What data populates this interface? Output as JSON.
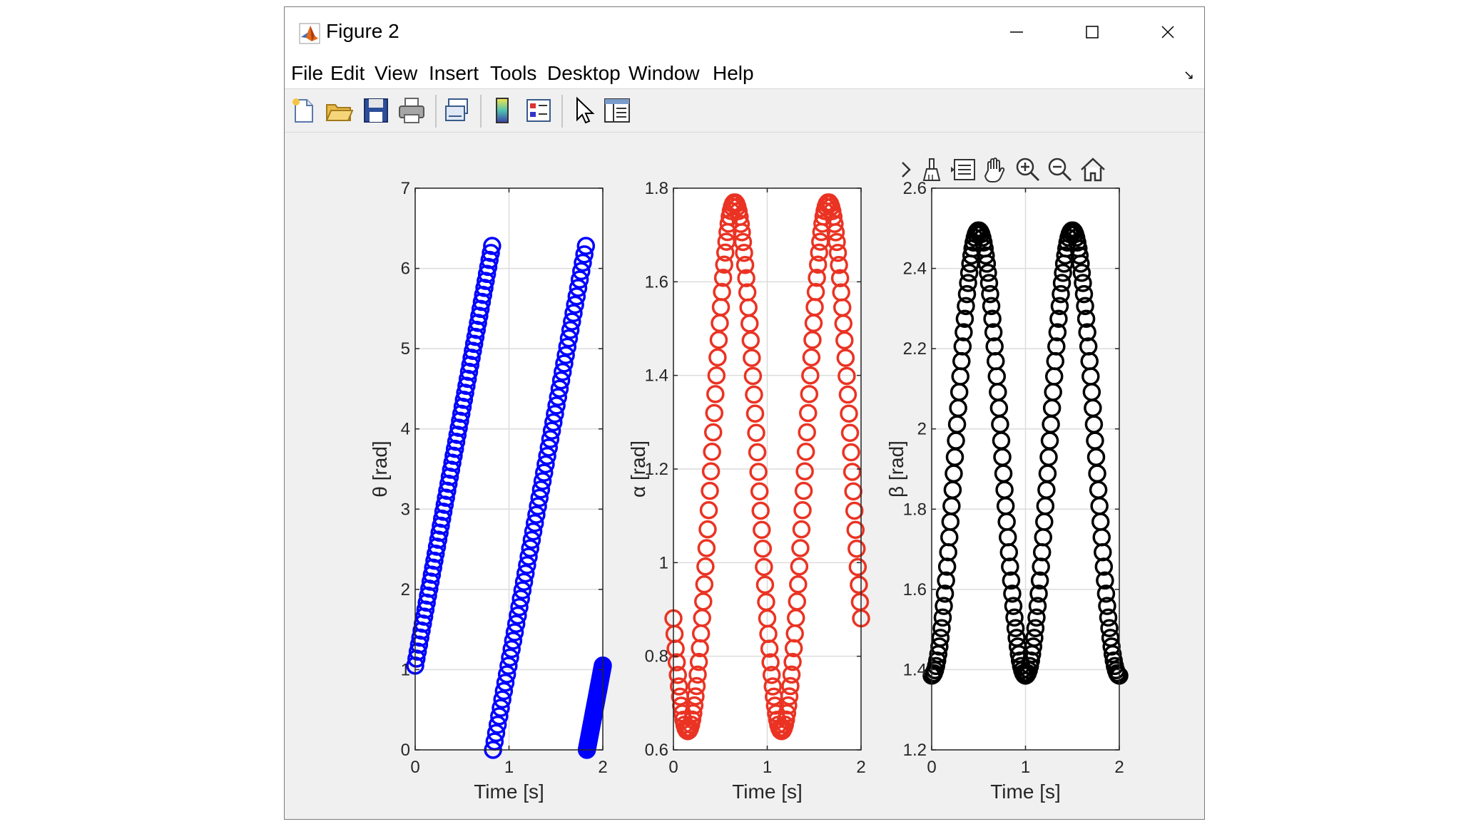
{
  "window": {
    "title": "Figure 2",
    "menu": [
      "File",
      "Edit",
      "View",
      "Insert",
      "Tools",
      "Desktop",
      "Window",
      "Help"
    ]
  },
  "toolbar": {
    "buttons": [
      {
        "name": "new-figure-icon"
      },
      {
        "name": "open-file-icon"
      },
      {
        "name": "save-icon"
      },
      {
        "name": "print-icon"
      },
      {
        "name": "link-plot-icon"
      },
      {
        "name": "insert-colorbar-icon"
      },
      {
        "name": "insert-legend-icon"
      },
      {
        "name": "edit-plot-cursor-icon"
      },
      {
        "name": "property-inspector-icon"
      }
    ]
  },
  "axes_toolbar": [
    "expand-chevron-icon",
    "brush-icon",
    "data-tips-icon",
    "pan-hand-icon",
    "zoom-in-icon",
    "zoom-out-icon",
    "home-icon"
  ],
  "colors": {
    "theta": "#0000ff",
    "alpha": "#ea3323",
    "beta": "#000000",
    "grid": "#dcdcdc"
  },
  "chart_data": [
    {
      "type": "scatter",
      "title": "",
      "xlabel": "Time [s]",
      "ylabel": "θ [rad]",
      "xlim": [
        0,
        2
      ],
      "ylim": [
        0,
        7
      ],
      "xticks": [
        "0",
        "1",
        "2"
      ],
      "yticks": [
        "0",
        "1",
        "2",
        "3",
        "4",
        "5",
        "6",
        "7"
      ],
      "grid": true,
      "color": "#0000ff",
      "segments": [
        {
          "x": [
            0.0,
            0.82
          ],
          "y": [
            1.05,
            6.28
          ]
        },
        {
          "x": [
            0.83,
            1.82
          ],
          "y": [
            0.0,
            6.28
          ]
        },
        {
          "x": [
            1.83,
            2.0
          ],
          "y": [
            0.0,
            1.05
          ]
        }
      ]
    },
    {
      "type": "scatter",
      "title": "",
      "xlabel": "Time [s]",
      "ylabel": "α [rad]",
      "xlim": [
        0,
        2
      ],
      "ylim": [
        0.6,
        1.8
      ],
      "xticks": [
        "0",
        "1",
        "2"
      ],
      "yticks": [
        "0.6",
        "0.8",
        "1",
        "1.2",
        "1.4",
        "1.6",
        "1.8"
      ],
      "grid": true,
      "color": "#ea3323",
      "curve": {
        "mean": 1.205,
        "amplitude": 0.565,
        "period": 1.0,
        "phase_deg": 215
      }
    },
    {
      "type": "scatter",
      "title": "",
      "xlabel": "Time [s]",
      "ylabel": "β [rad]",
      "xlim": [
        0,
        2
      ],
      "ylim": [
        1.2,
        2.6
      ],
      "xticks": [
        "0",
        "1",
        "2"
      ],
      "yticks": [
        "1.2",
        "1.4",
        "1.6",
        "1.8",
        "2",
        "2.2",
        "2.4",
        "2.6"
      ],
      "grid": true,
      "color": "#000000",
      "curve": {
        "mean": 1.94,
        "amplitude": 0.555,
        "period": 1.0,
        "phase_deg": 270
      }
    }
  ]
}
